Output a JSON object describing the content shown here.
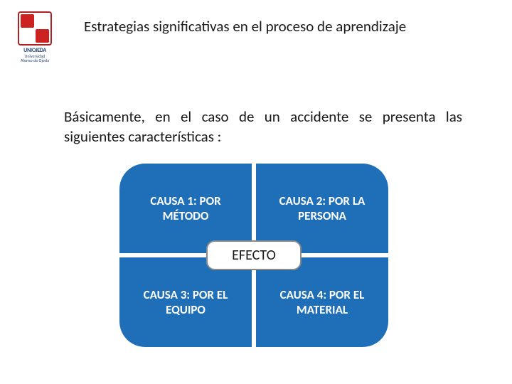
{
  "logo": {
    "line1": "UNIOJEDA",
    "line2": "Universidad",
    "line3": "Alonso de Ojeda"
  },
  "title": "Estrategias significativas  en el proceso de aprendizaje",
  "description": "Básicamente, en el caso de un accidente  se presenta las siguientes características :",
  "diagram": {
    "q1": "CAUSA 1: POR MÉTODO",
    "q2": "CAUSA 2: POR LA PERSONA",
    "q3": "CAUSA 3: POR EL EQUIPO",
    "q4": "CAUSA 4: POR EL MATERIAL",
    "center": "EFECTO",
    "quad_bg": "#1f6fb8",
    "quad_text": "#ffffff",
    "center_bg": "#ffffff",
    "center_border": "#8a8a8a"
  }
}
